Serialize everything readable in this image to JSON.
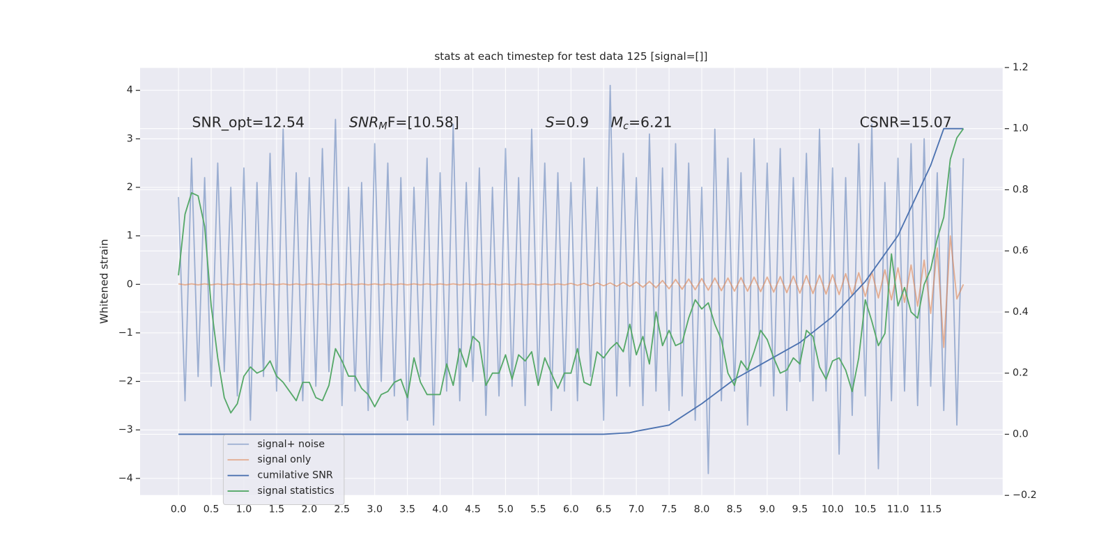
{
  "chart_data": {
    "type": "line",
    "title": "stats at each timestep for test data 125 [signal=[]]",
    "y_label": "Whitened strain",
    "xlim": [
      -0.587,
      12.6
    ],
    "ylim": [
      -4.35,
      4.47
    ],
    "y2lim": [
      -0.2,
      1.2
    ],
    "xticks": [
      {
        "value": 0,
        "label": "0.0"
      },
      0.5,
      {
        "value": 1,
        "label": "1.0"
      },
      1.5,
      {
        "value": 2,
        "label": "2.0"
      },
      2.5,
      {
        "value": 3,
        "label": "3.0"
      },
      3.5,
      {
        "value": 4,
        "label": "4.0"
      },
      4.5,
      {
        "value": 5,
        "label": "5.0"
      },
      5.5,
      {
        "value": 6,
        "label": "6.0"
      },
      6.5,
      {
        "value": 7,
        "label": "7.0"
      },
      7.5,
      {
        "value": 8,
        "label": "8.0"
      },
      8.5,
      {
        "value": 9,
        "label": "9.0"
      },
      9.5,
      {
        "value": 10,
        "label": "10.0"
      },
      10.5,
      {
        "value": 11,
        "label": "11.0"
      },
      11.5
    ],
    "yticks": [
      {
        "value": -4,
        "label": "−4"
      },
      {
        "value": -3,
        "label": "−3"
      },
      {
        "value": -2,
        "label": "−2"
      },
      {
        "value": -1,
        "label": "−1"
      },
      0,
      1,
      2,
      3,
      4
    ],
    "y2ticks": [
      {
        "value": -0.2,
        "label": "−0.2"
      },
      {
        "value": 0,
        "label": "0.0"
      },
      0.2,
      0.4,
      0.6,
      0.8,
      {
        "value": 1,
        "label": "1.0"
      },
      1.2
    ],
    "grid": true,
    "legend": "lower left",
    "x": [
      0,
      0.1,
      0.2,
      0.3,
      0.4,
      0.5,
      0.6,
      0.7,
      0.8,
      0.9,
      1,
      1.1,
      1.2,
      1.3,
      1.4,
      1.5,
      1.6,
      1.7,
      1.8,
      1.9,
      2,
      2.1,
      2.2,
      2.3,
      2.4,
      2.5,
      2.6,
      2.7,
      2.8,
      2.9,
      3,
      3.1,
      3.2,
      3.3,
      3.4,
      3.5,
      3.6,
      3.7,
      3.8,
      3.9,
      4,
      4.1,
      4.2,
      4.3,
      4.4,
      4.5,
      4.6,
      4.7,
      4.8,
      4.9,
      5,
      5.1,
      5.2,
      5.3,
      5.4,
      5.5,
      5.6,
      5.7,
      5.8,
      5.9,
      6,
      6.1,
      6.2,
      6.3,
      6.4,
      6.5,
      6.6,
      6.7,
      6.8,
      6.9,
      7,
      7.1,
      7.2,
      7.3,
      7.4,
      7.5,
      7.6,
      7.7,
      7.8,
      7.9,
      8,
      8.1,
      8.2,
      8.3,
      8.4,
      8.5,
      8.6,
      8.7,
      8.8,
      8.9,
      9,
      9.1,
      9.2,
      9.3,
      9.4,
      9.5,
      9.6,
      9.7,
      9.8,
      9.9,
      10,
      10.1,
      10.2,
      10.3,
      10.4,
      10.5,
      10.6,
      10.7,
      10.8,
      10.9,
      11,
      11.1,
      11.2,
      11.3,
      11.4,
      11.5,
      11.6,
      11.7,
      11.8,
      11.9,
      12
    ],
    "series": [
      {
        "name": "signal+ noise",
        "color": "#4c72b0",
        "opacity": 0.5,
        "values": [
          1.8,
          -2.4,
          2.6,
          -1.9,
          2.2,
          -2.1,
          2.5,
          -1.8,
          2.0,
          -2.3,
          2.4,
          -2.8,
          2.1,
          -1.9,
          2.7,
          -2.2,
          3.2,
          -2.0,
          2.3,
          -2.4,
          2.2,
          -2.1,
          2.8,
          -1.8,
          3.4,
          -2.5,
          2.0,
          -2.2,
          2.1,
          -2.6,
          2.9,
          -2.0,
          2.5,
          -2.3,
          2.2,
          -2.8,
          2.0,
          -1.9,
          2.6,
          -2.9,
          2.3,
          -2.2,
          3.3,
          -2.4,
          2.1,
          -2.0,
          2.4,
          -2.7,
          2.0,
          -2.3,
          2.8,
          -2.1,
          2.2,
          -2.5,
          3.2,
          -2.0,
          2.5,
          -2.6,
          2.3,
          -2.2,
          2.1,
          -2.4,
          2.6,
          -1.9,
          2.0,
          -2.8,
          4.1,
          -2.3,
          2.7,
          -2.1,
          2.2,
          -2.5,
          3.1,
          -2.2,
          2.4,
          -2.6,
          2.9,
          -2.3,
          2.5,
          -2.8,
          2.0,
          -3.9,
          3.2,
          -2.4,
          2.6,
          -2.2,
          2.3,
          -2.9,
          3.0,
          -2.1,
          2.5,
          -2.3,
          2.8,
          -2.6,
          2.2,
          -2.0,
          2.7,
          -2.4,
          3.2,
          -2.2,
          2.4,
          -3.5,
          2.2,
          -2.7,
          2.9,
          -2.3,
          3.3,
          -3.8,
          2.1,
          -2.4,
          2.6,
          -2.2,
          2.9,
          -2.5,
          3.0,
          -2.1,
          2.3,
          -2.6,
          2.4,
          -2.9,
          2.6
        ]
      },
      {
        "name": "signal only",
        "color": "#dd8452",
        "opacity": 0.6,
        "values": [
          0.01,
          -0.01,
          0.01,
          -0.01,
          0.01,
          -0.01,
          0.01,
          -0.01,
          0.01,
          -0.01,
          0.01,
          -0.01,
          0.01,
          -0.01,
          0.01,
          -0.01,
          0.01,
          -0.01,
          0.01,
          -0.01,
          0.01,
          -0.01,
          0.01,
          -0.01,
          0.01,
          -0.01,
          0.01,
          -0.01,
          0.01,
          -0.01,
          0.01,
          -0.01,
          0.01,
          -0.01,
          0.01,
          -0.01,
          0.01,
          -0.01,
          0.01,
          -0.01,
          0.01,
          -0.01,
          0.01,
          -0.01,
          0.01,
          -0.01,
          0.01,
          -0.01,
          0.01,
          -0.01,
          0.01,
          -0.01,
          0.01,
          -0.01,
          0.01,
          -0.01,
          0.01,
          -0.01,
          0.01,
          -0.01,
          0.02,
          -0.02,
          0.02,
          -0.03,
          0.03,
          -0.03,
          0.03,
          -0.04,
          0.04,
          -0.04,
          0.05,
          -0.06,
          0.06,
          -0.07,
          0.08,
          -0.09,
          0.1,
          -0.1,
          0.11,
          -0.11,
          0.12,
          -0.12,
          0.13,
          -0.13,
          0.13,
          -0.14,
          0.14,
          -0.14,
          0.15,
          -0.15,
          0.15,
          -0.16,
          0.16,
          -0.17,
          0.17,
          -0.18,
          0.18,
          -0.19,
          0.19,
          -0.2,
          0.2,
          -0.21,
          0.22,
          -0.23,
          0.24,
          -0.25,
          0.26,
          -0.28,
          0.3,
          -0.32,
          0.34,
          -0.37,
          0.4,
          -0.45,
          0.5,
          -0.6,
          0.75,
          -1.3,
          1.0,
          -0.3,
          0.0
        ]
      },
      {
        "name": "cumilative SNR",
        "color": "#4c72b0",
        "axis": "y2",
        "x": [
          0,
          6.5,
          6.9,
          7,
          7.5,
          8,
          8.5,
          9,
          9.5,
          10,
          10.5,
          11,
          11.5,
          11.7,
          12
        ],
        "values": [
          0,
          0,
          0.005,
          0.01,
          0.03,
          0.1,
          0.18,
          0.24,
          0.3,
          0.385,
          0.5,
          0.65,
          0.88,
          1.0,
          1.0
        ]
      },
      {
        "name": "signal statistics",
        "color": "#55a868",
        "axis": "y2",
        "values": [
          0.52,
          0.72,
          0.79,
          0.78,
          0.68,
          0.42,
          0.25,
          0.12,
          0.07,
          0.1,
          0.19,
          0.22,
          0.2,
          0.21,
          0.24,
          0.19,
          0.17,
          0.14,
          0.11,
          0.17,
          0.17,
          0.12,
          0.11,
          0.16,
          0.28,
          0.24,
          0.19,
          0.19,
          0.15,
          0.13,
          0.09,
          0.13,
          0.14,
          0.17,
          0.18,
          0.12,
          0.25,
          0.17,
          0.13,
          0.13,
          0.13,
          0.23,
          0.16,
          0.28,
          0.22,
          0.32,
          0.3,
          0.16,
          0.2,
          0.2,
          0.26,
          0.18,
          0.26,
          0.24,
          0.27,
          0.16,
          0.25,
          0.2,
          0.15,
          0.2,
          0.2,
          0.28,
          0.17,
          0.16,
          0.27,
          0.25,
          0.28,
          0.3,
          0.27,
          0.36,
          0.26,
          0.32,
          0.23,
          0.4,
          0.29,
          0.34,
          0.29,
          0.3,
          0.38,
          0.44,
          0.41,
          0.43,
          0.36,
          0.31,
          0.2,
          0.16,
          0.24,
          0.21,
          0.27,
          0.34,
          0.31,
          0.25,
          0.2,
          0.21,
          0.25,
          0.23,
          0.34,
          0.32,
          0.22,
          0.18,
          0.24,
          0.25,
          0.21,
          0.14,
          0.25,
          0.44,
          0.37,
          0.29,
          0.33,
          0.59,
          0.42,
          0.48,
          0.4,
          0.38,
          0.49,
          0.54,
          0.64,
          0.71,
          0.9,
          0.97,
          1.0
        ]
      }
    ],
    "annotations": [
      {
        "text": "SNR_opt=12.54"
      },
      {
        "italic": "SNR",
        "sub": "M",
        "text": "F=[10.58]"
      },
      {
        "italic": "S",
        "text": "=0.9"
      },
      {
        "italic": "M",
        "sub": "c",
        "text": "=6.21"
      },
      {
        "text": "CSNR=15.07"
      }
    ]
  }
}
